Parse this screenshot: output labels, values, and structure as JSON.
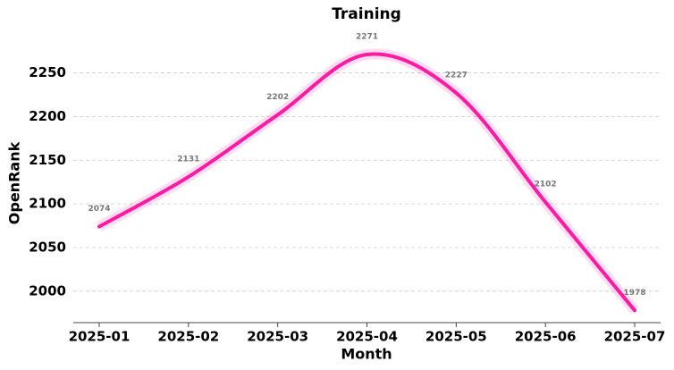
{
  "chart_data": {
    "type": "line",
    "title": "Training",
    "x_label": "Month",
    "y_label": "OpenRank",
    "categories": [
      "2025-01",
      "2025-02",
      "2025-03",
      "2025-04",
      "2025-05",
      "2025-06",
      "2025-07"
    ],
    "series": [
      {
        "name": "OpenRank",
        "color": "#ff1aa3",
        "values": [
          2074,
          2131,
          2202,
          2271,
          2227,
          2102,
          1978
        ]
      }
    ],
    "ylim": [
      1964,
      2313
    ],
    "yticks": [
      2000,
      2050,
      2100,
      2150,
      2200,
      2250
    ],
    "grid": true
  }
}
